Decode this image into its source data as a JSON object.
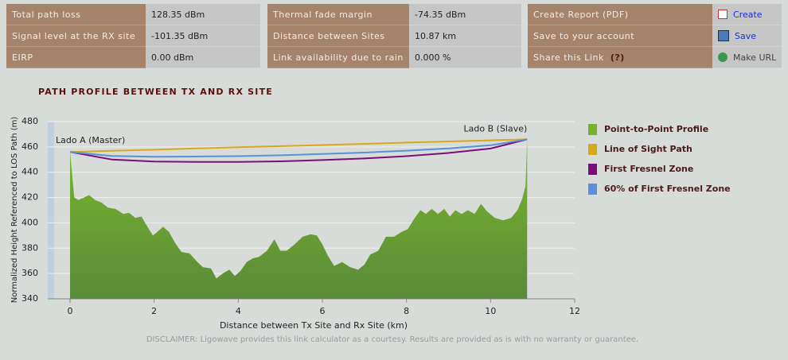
{
  "panels": [
    {
      "rows": [
        {
          "label": "Total path loss",
          "value": "128.35  dBm"
        },
        {
          "label": "Signal level at the RX site",
          "value": "-101.35 dBm"
        },
        {
          "label": "EIRP",
          "value": "0.00 dBm"
        }
      ]
    },
    {
      "rows": [
        {
          "label": "Thermal fade margin",
          "value": "-74.35 dBm"
        },
        {
          "label": "Distance between Sites",
          "value": "10.87 km"
        },
        {
          "label": "Link availability due to rain",
          "value": "0.000 %"
        }
      ]
    },
    {
      "rows": [
        {
          "label": "Create Report (PDF)",
          "value": "Create"
        },
        {
          "label": "Save to your account",
          "value": "Save"
        },
        {
          "label": "Share this Link",
          "help": "(?)",
          "value": "Make URL"
        }
      ]
    }
  ],
  "chart_data": {
    "type": "line",
    "title": "PATH PROFILE BETWEEN TX AND RX SITE",
    "x_label": "Distance between Tx Site and Rx Site (km)",
    "y_label": "Normalized Height Referenced to LOS Path (m)",
    "xlim": [
      -0.53,
      12
    ],
    "ylim": [
      340,
      480
    ],
    "xticks": [
      0,
      2,
      4,
      6,
      8,
      10,
      12
    ],
    "yticks": [
      340,
      360,
      380,
      400,
      420,
      440,
      460,
      480
    ],
    "grid": true,
    "annotations": [
      "Lado A (Master)",
      "Lado B (Slave)"
    ],
    "series": [
      {
        "name": "Point-to-Point Profile",
        "type": "area",
        "color": "#78b22c",
        "x": [
          0,
          0.1,
          0.2,
          0.33,
          0.45,
          0.6,
          0.75,
          0.9,
          1.08,
          1.27,
          1.4,
          1.55,
          1.7,
          1.84,
          1.97,
          2.08,
          2.21,
          2.35,
          2.5,
          2.65,
          2.84,
          3.03,
          3.16,
          3.35,
          3.48,
          3.63,
          3.79,
          3.92,
          4.05,
          4.2,
          4.35,
          4.49,
          4.68,
          4.86,
          5.0,
          5.15,
          5.34,
          5.53,
          5.72,
          5.87,
          6.0,
          6.13,
          6.28,
          6.47,
          6.66,
          6.85,
          7.0,
          7.14,
          7.33,
          7.51,
          7.7,
          7.89,
          8.03,
          8.18,
          8.33,
          8.46,
          8.6,
          8.75,
          8.9,
          9.03,
          9.16,
          9.31,
          9.46,
          9.62,
          9.77,
          9.92,
          10.1,
          10.3,
          10.49,
          10.64,
          10.75,
          10.83,
          10.87
        ],
        "values": [
          456,
          420,
          418,
          420,
          422,
          418,
          416,
          412,
          411,
          407,
          408,
          404,
          405,
          397,
          390,
          393,
          397,
          393,
          384,
          377,
          376,
          369,
          365,
          364,
          356,
          360,
          363,
          358,
          362,
          369,
          372,
          373,
          378,
          387,
          378,
          378,
          383,
          389,
          391,
          390,
          383,
          374,
          366,
          369,
          365,
          363,
          367,
          375,
          378,
          389,
          389,
          393,
          395,
          403,
          410,
          407,
          411,
          407,
          411,
          405,
          410,
          407,
          410,
          407,
          415,
          409,
          404,
          402,
          404,
          410,
          419,
          429,
          466
        ]
      },
      {
        "name": "Line of Sight Path",
        "color": "#d9a81a",
        "x": [
          0,
          1,
          2,
          3,
          4,
          5,
          6,
          7,
          8,
          9,
          10,
          10.87
        ],
        "values": [
          456,
          456.9,
          457.8,
          458.8,
          459.7,
          460.6,
          461.5,
          462.4,
          463.4,
          464.3,
          465.2,
          466
        ]
      },
      {
        "name": "First Fresnel Zone",
        "color": "#7c0c7c",
        "x": [
          0,
          1,
          2,
          3,
          4,
          5,
          6,
          7,
          8,
          9,
          10,
          10.87
        ],
        "values": [
          456,
          450,
          448.5,
          448.1,
          448.1,
          448.6,
          449.6,
          450.9,
          452.7,
          455.2,
          458.7,
          466
        ]
      },
      {
        "name": "60% of First Fresnel Zone",
        "color": "#5a90d8",
        "x": [
          0,
          1,
          2,
          3,
          4,
          5,
          6,
          7,
          8,
          9,
          10,
          10.87
        ],
        "values": [
          456,
          452.8,
          452.2,
          452.4,
          452.7,
          453.4,
          454.4,
          455.5,
          457,
          458.8,
          461.3,
          466
        ]
      }
    ]
  },
  "disclaimer": "DISCLAIMER: Ligowave provides this link calculator as a courtesy.  Results are provided as is with no warranty or guarantee."
}
